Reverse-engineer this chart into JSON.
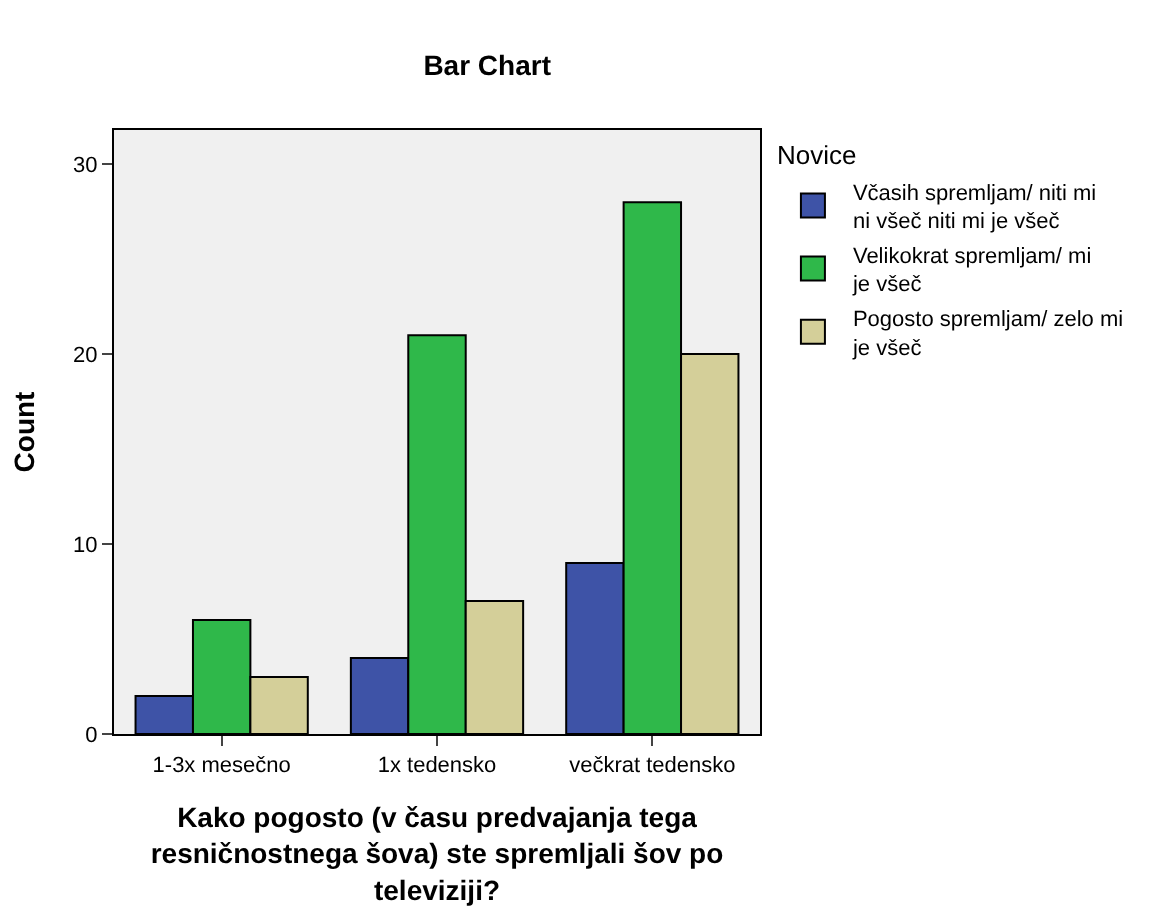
{
  "chart_data": {
    "type": "bar",
    "title": "Bar Chart",
    "xlabel": "Kako pogosto (v času predvajanja tega resničnostnega šova) ste spremljali šov po televiziji?",
    "ylabel": "Count",
    "legend_title": "Novice",
    "categories": [
      "1-3x mesečno",
      "1x tedensko",
      "večkrat tedensko"
    ],
    "series": [
      {
        "name": "Včasih spremljam/ niti mi ni všeč niti mi je všeč",
        "color": "#3e53a7",
        "values": [
          2,
          4,
          9
        ]
      },
      {
        "name": "Velikokrat spremljam/ mi je všeč",
        "color": "#2fb84a",
        "values": [
          6,
          21,
          28
        ]
      },
      {
        "name": "Pogosto spremljam/ zelo mi je všeč",
        "color": "#d4cf99",
        "values": [
          3,
          7,
          20
        ]
      }
    ],
    "ylim": [
      0,
      31.8
    ],
    "yticks": [
      0,
      10,
      20,
      30
    ],
    "grid": false,
    "legend": "right"
  }
}
